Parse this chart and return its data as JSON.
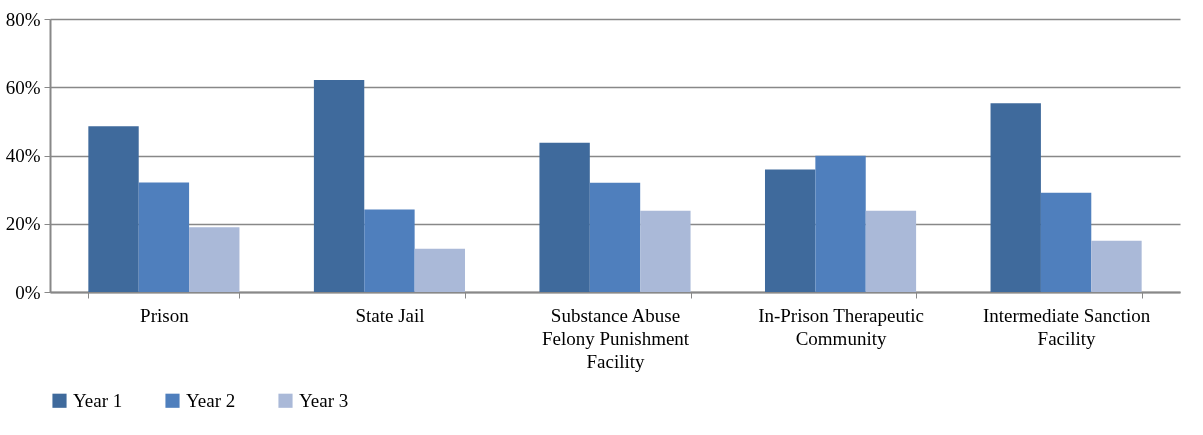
{
  "chart_data": {
    "type": "bar",
    "categories": [
      "Prison",
      "State Jail",
      "Substance Abuse Felony Punishment Facility",
      "In-Prison Therapeutic Community",
      "Intermediate Sanction Facility"
    ],
    "series": [
      {
        "name": "Year 1",
        "color": "#3f6a9c",
        "values": [
          48.6,
          62.1,
          43.7,
          35.9,
          55.3
        ]
      },
      {
        "name": "Year 2",
        "color": "#4f7fbd",
        "values": [
          32.1,
          24.2,
          32.0,
          39.9,
          29.1
        ]
      },
      {
        "name": "Year 3",
        "color": "#aab9d8",
        "values": [
          19.0,
          12.7,
          23.8,
          23.8,
          15.0
        ]
      }
    ],
    "ylim": [
      0,
      80
    ],
    "yticks": [
      {
        "value": 0,
        "label": "0%"
      },
      {
        "value": 20,
        "label": "20%"
      },
      {
        "value": 40,
        "label": "40%"
      },
      {
        "value": 60,
        "label": "60%"
      },
      {
        "value": 80,
        "label": "80%"
      }
    ],
    "grid": "y",
    "legend": "bottom"
  }
}
